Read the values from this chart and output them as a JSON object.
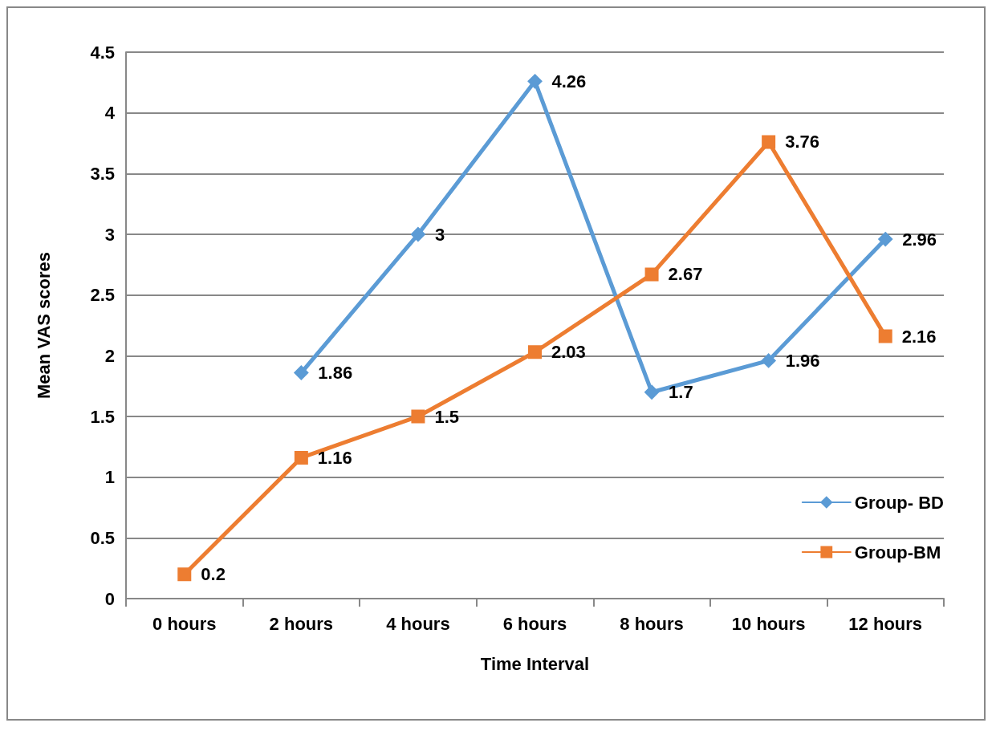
{
  "chart_data": {
    "type": "line",
    "xlabel": "Time Interval",
    "ylabel": "Mean VAS scores",
    "categories": [
      "0 hours",
      "2 hours",
      "4 hours",
      "6 hours",
      "8 hours",
      "10 hours",
      "12 hours"
    ],
    "series": [
      {
        "name": "Group- BD",
        "color": "#5b9bd5",
        "marker": "diamond",
        "values": [
          null,
          1.86,
          3,
          4.26,
          1.7,
          1.96,
          2.96
        ]
      },
      {
        "name": "Group-BM",
        "color": "#ed7d31",
        "marker": "square",
        "values": [
          0.2,
          1.16,
          1.5,
          2.03,
          2.67,
          3.76,
          2.16
        ]
      }
    ],
    "ylim": [
      0,
      4.5
    ],
    "yticks": [
      0,
      0.5,
      1,
      1.5,
      2,
      2.5,
      3,
      3.5,
      4,
      4.5
    ],
    "grid": "y",
    "legend": "right",
    "data_labels": true,
    "line_style": "solid"
  }
}
